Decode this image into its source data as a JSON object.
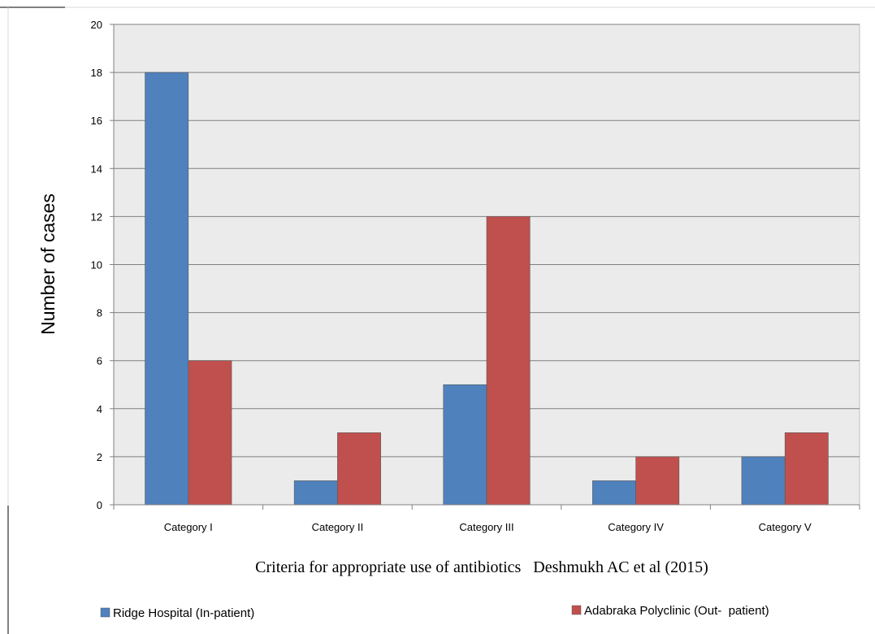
{
  "chart_data": {
    "type": "bar",
    "categories": [
      "Category I",
      "Category II",
      "Category III",
      "Category IV",
      "Category V"
    ],
    "series": [
      {
        "name": "Ridge Hospital (In-patient)",
        "values": [
          18,
          1,
          5,
          1,
          2
        ],
        "color": "#4f81bd"
      },
      {
        "name": "Adabraka Polyclinic (Out-  patient)",
        "values": [
          6,
          3,
          12,
          2,
          3
        ],
        "color": "#c0504d"
      }
    ],
    "xlabel": "Criteria for appropriate use of antibiotics   Deshmukh AC et al (2015)",
    "ylabel": "Number of cases",
    "ylim": [
      0,
      20
    ],
    "yticks": [
      "0",
      "2",
      "4",
      "6",
      "8",
      "10",
      "12",
      "14",
      "16",
      "18",
      "20"
    ],
    "grid": true,
    "legend_position": "bottom",
    "plot_background": "#ebebeb",
    "gridline_color": "#808080"
  }
}
